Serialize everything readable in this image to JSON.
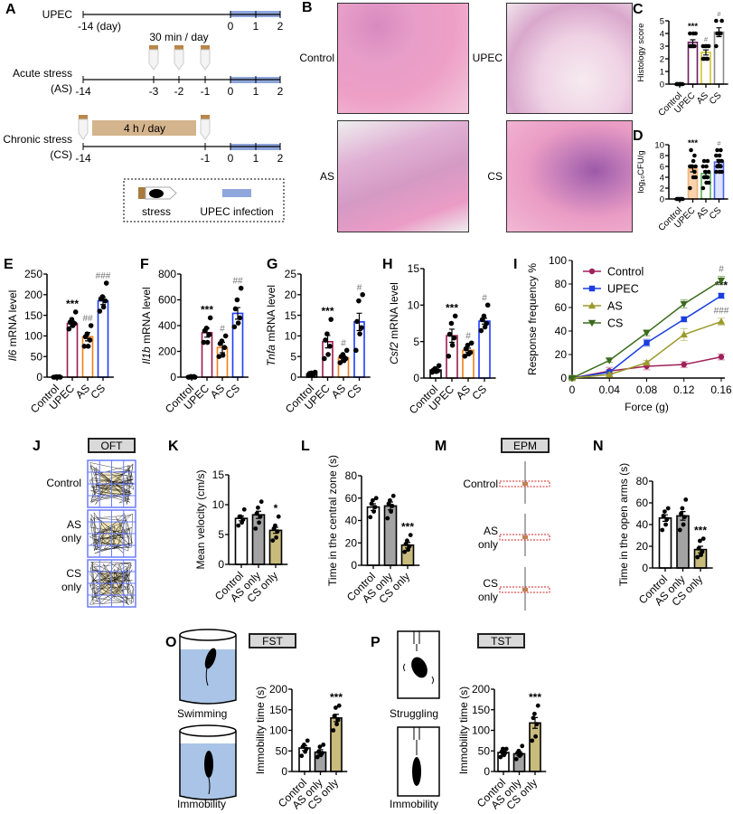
{
  "panel_letters": [
    "A",
    "B",
    "C",
    "D",
    "E",
    "F",
    "G",
    "H",
    "I",
    "J",
    "K",
    "L",
    "M",
    "N",
    "O",
    "P"
  ],
  "panel_a": {
    "rows": [
      {
        "label": "UPEC",
        "sublabel": "",
        "ticks": [
          "-14 (day)",
          "0",
          "1",
          "2"
        ]
      },
      {
        "label": "Acute stress",
        "sublabel": "(AS)",
        "ticks": [
          "-14",
          "-3",
          "-2",
          "-1",
          "0",
          "1",
          "2"
        ]
      },
      {
        "label": "Chronic stress",
        "sublabel": "(CS)",
        "ticks": [
          "-14",
          "-1",
          "0",
          "1",
          "2"
        ]
      }
    ],
    "as_note": "30 min / day",
    "cs_note": "4 h / day",
    "legend": {
      "stress": "stress",
      "infection": "UPEC infection"
    },
    "colors": {
      "infection": "#8fa6dc",
      "stress_bar": "#d4b48c"
    }
  },
  "panel_b": {
    "labels": [
      "Control",
      "UPEC",
      "AS",
      "CS"
    ]
  },
  "panel_j": {
    "title": "OFT",
    "labels": [
      "Control",
      "AS\nonly",
      "CS\nonly"
    ]
  },
  "panel_m": {
    "title": "EPM",
    "labels": [
      "Control",
      "AS\nonly",
      "CS\nonly"
    ]
  },
  "panel_o": {
    "title": "FST",
    "labels": [
      "Swimming",
      "Immobility"
    ]
  },
  "panel_p": {
    "title": "TST",
    "labels": [
      "Struggling",
      "Immobility"
    ]
  },
  "chart_data": [
    {
      "id": "C",
      "type": "bar",
      "ylabel": "Histology score",
      "ylim": [
        0,
        5
      ],
      "ystep": 1,
      "categories": [
        "Control",
        "UPEC",
        "AS",
        "CS"
      ],
      "values": [
        0,
        3.3,
        2.5,
        4.1
      ],
      "sem": [
        0.03,
        0.2,
        0.2,
        0.35
      ],
      "points": [
        [
          0,
          0,
          0,
          0,
          0,
          0,
          0,
          0
        ],
        [
          3,
          3,
          3,
          3,
          3,
          4,
          4,
          4
        ],
        [
          2,
          2,
          2,
          2,
          3,
          3,
          3,
          3
        ],
        [
          3,
          4,
          4,
          4,
          4,
          5,
          5,
          4
        ]
      ],
      "annotations": [
        "",
        "***",
        "#",
        "#"
      ],
      "stroke": [
        "#000000",
        "#6e1d5e",
        "#d4c52c",
        "#8a8a8a"
      ],
      "fill": [
        "#ffffff",
        "#ffffff",
        "#ffffff",
        "#ffffff"
      ]
    },
    {
      "id": "D",
      "type": "bar",
      "ylabel": "log₁₀CFU/g",
      "ylim": [
        0,
        10
      ],
      "ystep": 2,
      "categories": [
        "Control",
        "UPEC",
        "AS",
        "CS"
      ],
      "values": [
        0,
        5.5,
        4.7,
        6.8
      ],
      "sem": [
        0.05,
        0.5,
        0.45,
        0.45
      ],
      "points": [
        [
          0,
          0,
          0,
          0,
          0,
          0
        ],
        [
          2,
          4,
          5,
          6,
          6,
          6,
          6,
          7,
          8,
          9,
          6,
          4
        ],
        [
          2,
          3,
          4,
          4,
          5,
          5,
          6,
          6,
          7,
          7,
          4,
          3
        ],
        [
          5,
          5,
          6,
          6,
          7,
          7,
          8,
          8,
          9,
          9,
          6,
          5
        ]
      ],
      "annotations": [
        "",
        "***",
        "",
        "#"
      ],
      "stroke": [
        "#000000",
        "#f2b27a",
        "#5cb85c",
        "#4a63ff"
      ],
      "fill": [
        "#ffffff",
        "#f8d3ae",
        "#ffffff",
        "#dfe4ff"
      ]
    },
    {
      "id": "E",
      "type": "bar",
      "ylabel_gene": "Il6",
      "ylabel": " mRNA level",
      "ylim": [
        0,
        250
      ],
      "ystep": 50,
      "categories": [
        "Control",
        "UPEC",
        "AS",
        "CS"
      ],
      "values": [
        1,
        130,
        98,
        185
      ],
      "sem": [
        0.5,
        6,
        10,
        9
      ],
      "points": [
        [
          0,
          0,
          1,
          0,
          1,
          0
        ],
        [
          117,
          125,
          130,
          133,
          140,
          158
        ],
        [
          75,
          75,
          90,
          98,
          105,
          125
        ],
        [
          160,
          170,
          185,
          190,
          195,
          228
        ]
      ],
      "annotations": [
        "",
        "***",
        "##",
        "###"
      ],
      "stroke": [
        "#000000",
        "#9b1c4f",
        "#f07f1a",
        "#1e3cff"
      ],
      "fill": [
        "#ffffff",
        "#ffffff",
        "#ffffff",
        "#ffffff"
      ]
    },
    {
      "id": "F",
      "type": "bar",
      "ylabel_gene": "Il1b",
      "ylabel": " mRNA level",
      "ylim": [
        0,
        800
      ],
      "ystep": 200,
      "categories": [
        "Control",
        "UPEC",
        "AS",
        "CS"
      ],
      "values": [
        5,
        345,
        230,
        495
      ],
      "sem": [
        3,
        35,
        40,
        45
      ],
      "points": [
        [
          0,
          0,
          5,
          0,
          5,
          0
        ],
        [
          270,
          270,
          330,
          360,
          380,
          460
        ],
        [
          160,
          170,
          230,
          260,
          280,
          320
        ],
        [
          390,
          420,
          460,
          530,
          600,
          690
        ]
      ],
      "annotations": [
        "",
        "***",
        "#",
        "##"
      ],
      "stroke": [
        "#000000",
        "#9b1c4f",
        "#f07f1a",
        "#1e3cff"
      ],
      "fill": [
        "#ffffff",
        "#ffffff",
        "#ffffff",
        "#ffffff"
      ]
    },
    {
      "id": "G",
      "type": "bar",
      "ylabel_gene": "Tnfa",
      "ylabel": " mRNA level",
      "ylim": [
        0,
        25
      ],
      "ystep": 5,
      "categories": [
        "Control",
        "UPEC",
        "AS",
        "CS"
      ],
      "values": [
        0.8,
        8.6,
        4.7,
        13.4
      ],
      "sem": [
        0.1,
        1.5,
        0.5,
        2.1
      ],
      "points": [
        [
          0.5,
          0.6,
          0.8,
          0.9,
          1.0,
          1.2
        ],
        [
          4.5,
          5.5,
          7.5,
          9,
          10.5,
          14
        ],
        [
          3.5,
          4,
          4.5,
          5,
          5.5,
          6.5
        ],
        [
          6.5,
          10.5,
          12,
          13.5,
          18.5,
          20
        ]
      ],
      "annotations": [
        "",
        "***",
        "#",
        "#"
      ],
      "stroke": [
        "#000000",
        "#9b1c4f",
        "#f07f1a",
        "#1e3cff"
      ],
      "fill": [
        "#ffffff",
        "#ffffff",
        "#ffffff",
        "#ffffff"
      ]
    },
    {
      "id": "H",
      "type": "bar",
      "ylabel": "Csf2 mRNA level",
      "ylim": [
        0,
        15
      ],
      "ystep": 5,
      "categories": [
        "Control",
        "UPEC",
        "AS",
        "CS"
      ],
      "values": [
        1.1,
        5.8,
        3.8,
        7.8
      ],
      "sem": [
        0.1,
        0.9,
        0.3,
        0.4
      ],
      "points": [
        [
          0.8,
          0.9,
          1,
          1.1,
          1.3,
          1.7
        ],
        [
          3,
          4.5,
          5.5,
          6,
          7.5,
          8.5
        ],
        [
          3,
          3.3,
          3.5,
          4,
          4.5,
          4.8
        ],
        [
          6.5,
          7,
          7.5,
          8,
          8.5,
          10
        ]
      ],
      "annotations": [
        "",
        "***",
        "#",
        "#"
      ],
      "stroke": [
        "#000000",
        "#9b1c4f",
        "#f07f1a",
        "#1e3cff"
      ],
      "fill": [
        "#ffffff",
        "#ffffff",
        "#ffffff",
        "#ffffff"
      ]
    },
    {
      "id": "I",
      "type": "line",
      "xlabel": "Force (g)",
      "ylabel": "Response frequency %",
      "xlim": [
        0,
        0.16
      ],
      "ylim": [
        0,
        100
      ],
      "ystep": 20,
      "x": [
        0,
        0.04,
        0.08,
        0.12,
        0.16
      ],
      "xticks": [
        "0",
        "0.04",
        "0.08",
        "0.12",
        "0.16"
      ],
      "legend": "top-left",
      "series": [
        {
          "name": "Control",
          "values": [
            0,
            6,
            10,
            11.5,
            18
          ],
          "sem": [
            1,
            3,
            3,
            2.5,
            2.5
          ],
          "color": "#a0205a",
          "marker": "circle",
          "annotation": ""
        },
        {
          "name": "UPEC",
          "values": [
            0,
            5,
            30,
            50,
            70
          ],
          "sem": [
            1,
            1.5,
            3,
            2,
            2
          ],
          "color": "#1a3ee0",
          "marker": "square",
          "annotation": "***"
        },
        {
          "name": "AS",
          "values": [
            0,
            3,
            13,
            37,
            48
          ],
          "sem": [
            1,
            1.5,
            2,
            5,
            3
          ],
          "color": "#9a9a2a",
          "marker": "triangle-up",
          "annotation": "###"
        },
        {
          "name": "CS",
          "values": [
            0,
            15,
            38.5,
            63,
            83
          ],
          "sem": [
            1,
            1.5,
            2.5,
            3.5,
            3.5
          ],
          "color": "#3a6a1a",
          "marker": "triangle-down",
          "annotation": "#"
        }
      ]
    },
    {
      "id": "K",
      "type": "bar",
      "ylabel": "Mean velocity (cm/s)",
      "ylim": [
        0,
        15
      ],
      "ystep": 5,
      "categories": [
        "Control",
        "AS only",
        "CS only"
      ],
      "values": [
        7.7,
        8.3,
        5.7
      ],
      "sem": [
        0.4,
        0.6,
        0.5
      ],
      "points": [
        [
          6.5,
          7,
          7.5,
          8,
          8,
          9.2
        ],
        [
          6,
          7,
          8,
          8.5,
          9.5,
          10.5
        ],
        [
          4,
          4.5,
          5.5,
          6,
          6.5,
          8
        ]
      ],
      "annotations": [
        "",
        "",
        "*"
      ],
      "stroke": [
        "#000000",
        "#000000",
        "#000000"
      ],
      "fill": [
        "#ffffff",
        "#a3a3a3",
        "#c9bb7c"
      ]
    },
    {
      "id": "L",
      "type": "bar",
      "ylabel": "Time in the central zone (s)",
      "ylim": [
        0,
        80
      ],
      "ystep": 20,
      "categories": [
        "Control",
        "AS only",
        "CS only"
      ],
      "values": [
        52,
        53,
        18
      ],
      "sem": [
        3,
        3.5,
        2.5
      ],
      "points": [
        [
          43,
          48,
          52,
          55,
          58,
          60
        ],
        [
          42,
          48,
          53,
          55,
          58,
          62
        ],
        [
          12,
          14,
          17,
          19,
          22,
          27
        ]
      ],
      "annotations": [
        "",
        "",
        "***"
      ],
      "stroke": [
        "#000000",
        "#000000",
        "#000000"
      ],
      "fill": [
        "#ffffff",
        "#a3a3a3",
        "#c9bb7c"
      ]
    },
    {
      "id": "N",
      "type": "bar",
      "ylabel": "Time in the open arms (s)",
      "ylim": [
        0,
        80
      ],
      "ystep": 20,
      "categories": [
        "Control",
        "AS only",
        "CS only"
      ],
      "values": [
        46,
        48,
        17
      ],
      "sem": [
        3,
        4,
        3
      ],
      "points": [
        [
          35,
          40,
          45,
          48,
          52,
          55
        ],
        [
          35,
          40,
          47,
          50,
          55,
          63
        ],
        [
          10,
          12,
          15,
          18,
          25,
          27
        ]
      ],
      "annotations": [
        "",
        "",
        "***"
      ],
      "stroke": [
        "#000000",
        "#000000",
        "#000000"
      ],
      "fill": [
        "#ffffff",
        "#a3a3a3",
        "#c9bb7c"
      ]
    },
    {
      "id": "O",
      "type": "bar",
      "ylabel": "Immobility time (s)",
      "ylim": [
        0,
        200
      ],
      "ystep": 50,
      "categories": [
        "Control",
        "AS only",
        "CS only"
      ],
      "values": [
        57,
        47,
        130
      ],
      "sem": [
        6,
        6,
        9
      ],
      "points": [
        [
          38,
          48,
          55,
          60,
          65,
          75
        ],
        [
          35,
          40,
          45,
          48,
          60,
          65
        ],
        [
          100,
          115,
          125,
          135,
          155,
          160
        ]
      ],
      "annotations": [
        "",
        "",
        "***"
      ],
      "stroke": [
        "#000000",
        "#000000",
        "#000000"
      ],
      "fill": [
        "#ffffff",
        "#a3a3a3",
        "#c9bb7c"
      ]
    },
    {
      "id": "P",
      "type": "bar",
      "ylabel": "Immobility time (s)",
      "ylim": [
        0,
        200
      ],
      "ystep": 50,
      "categories": [
        "Control",
        "AS only",
        "CS only"
      ],
      "values": [
        46,
        43,
        118
      ],
      "sem": [
        4,
        5,
        13
      ],
      "points": [
        [
          35,
          40,
          45,
          48,
          55,
          55
        ],
        [
          30,
          38,
          42,
          45,
          50,
          62
        ],
        [
          75,
          85,
          115,
          130,
          140,
          160
        ]
      ],
      "annotations": [
        "",
        "",
        "***"
      ],
      "stroke": [
        "#000000",
        "#000000",
        "#000000"
      ],
      "fill": [
        "#ffffff",
        "#a3a3a3",
        "#c9bb7c"
      ]
    }
  ]
}
